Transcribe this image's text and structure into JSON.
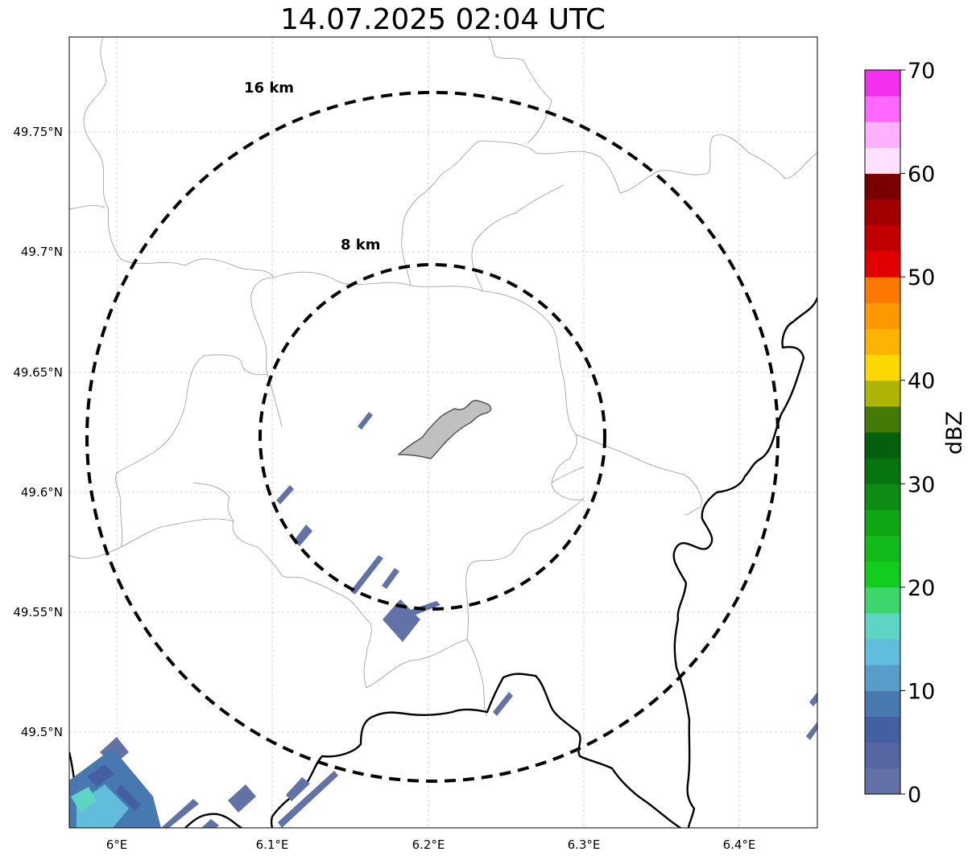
{
  "map": {
    "title": "14.07.2025 02:04 UTC",
    "lon_ticks": [
      "6°E",
      "6.1°E",
      "6.2°E",
      "6.3°E",
      "6.4°E"
    ],
    "lat_ticks": [
      "49.75°N",
      "49.7°N",
      "49.65°N",
      "49.6°N",
      "49.55°N",
      "49.5°N"
    ],
    "rings": [
      {
        "label": "16 km",
        "radius_km": 16
      },
      {
        "label": "8 km",
        "radius_km": 8
      }
    ],
    "extent": {
      "lon": [
        5.97,
        6.45
      ],
      "lat": [
        49.46,
        49.79
      ]
    },
    "gridlines": true,
    "colors": {
      "rings": "#000000",
      "city": "#c0c0c0",
      "border": "#000000",
      "admin": "#999999"
    }
  },
  "colorbar": {
    "label": "dBZ",
    "min": 0,
    "max": 70,
    "ticks": [
      "0",
      "10",
      "20",
      "30",
      "40",
      "50",
      "60",
      "70"
    ],
    "colors": [
      "#6272a6",
      "#5566a0",
      "#4460a4",
      "#4878b0",
      "#569ec8",
      "#62bcdc",
      "#5ed4c4",
      "#3cd66c",
      "#12cc1e",
      "#10bb1a",
      "#0ea614",
      "#0c8c12",
      "#087410",
      "#04600c",
      "#467a08",
      "#adb406",
      "#fcd800",
      "#fcb400",
      "#fc9800",
      "#fc7800",
      "#e00000",
      "#c00000",
      "#a00000",
      "#780000",
      "#ffe0ff",
      "#ffb0ff",
      "#ff68ff",
      "#f230ee"
    ]
  }
}
